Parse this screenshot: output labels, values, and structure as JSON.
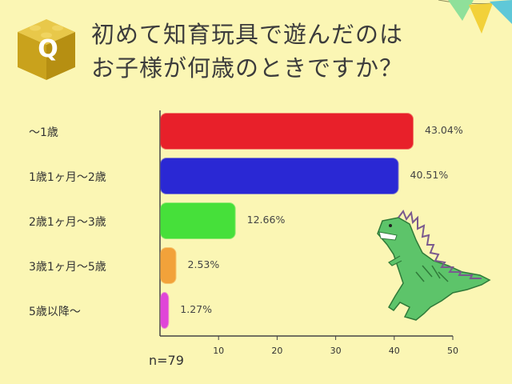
{
  "title": {
    "line1": "初めて知育玩具で遊んだのは",
    "line2": "お子様が何歳のときですか？"
  },
  "badge_letter": "Q",
  "sample_size": "n=79",
  "colors": {
    "background": "#fbf6b4",
    "badge": "#dcb624",
    "dinosaur": "#5dc46a"
  },
  "chart_data": {
    "type": "bar",
    "orientation": "horizontal",
    "title": "初めて知育玩具で遊んだのはお子様が何歳のときですか？",
    "categories": [
      "～1歳",
      "1歳1ヶ月～2歳",
      "2歳1ヶ月～3歳",
      "3歳1ヶ月～5歳",
      "5歳以降～"
    ],
    "values": [
      43.04,
      40.51,
      12.66,
      2.53,
      1.27
    ],
    "value_labels": [
      "43.04%",
      "40.51%",
      "12.66%",
      "2.53%",
      "1.27%"
    ],
    "bar_colors": [
      "#e8202a",
      "#2a28d4",
      "#46e03a",
      "#f2a23a",
      "#e045d8"
    ],
    "xlim": [
      0,
      50
    ],
    "xticks": [
      10,
      20,
      30,
      40,
      50
    ],
    "xlabel": "",
    "ylabel": "",
    "grid": false
  }
}
